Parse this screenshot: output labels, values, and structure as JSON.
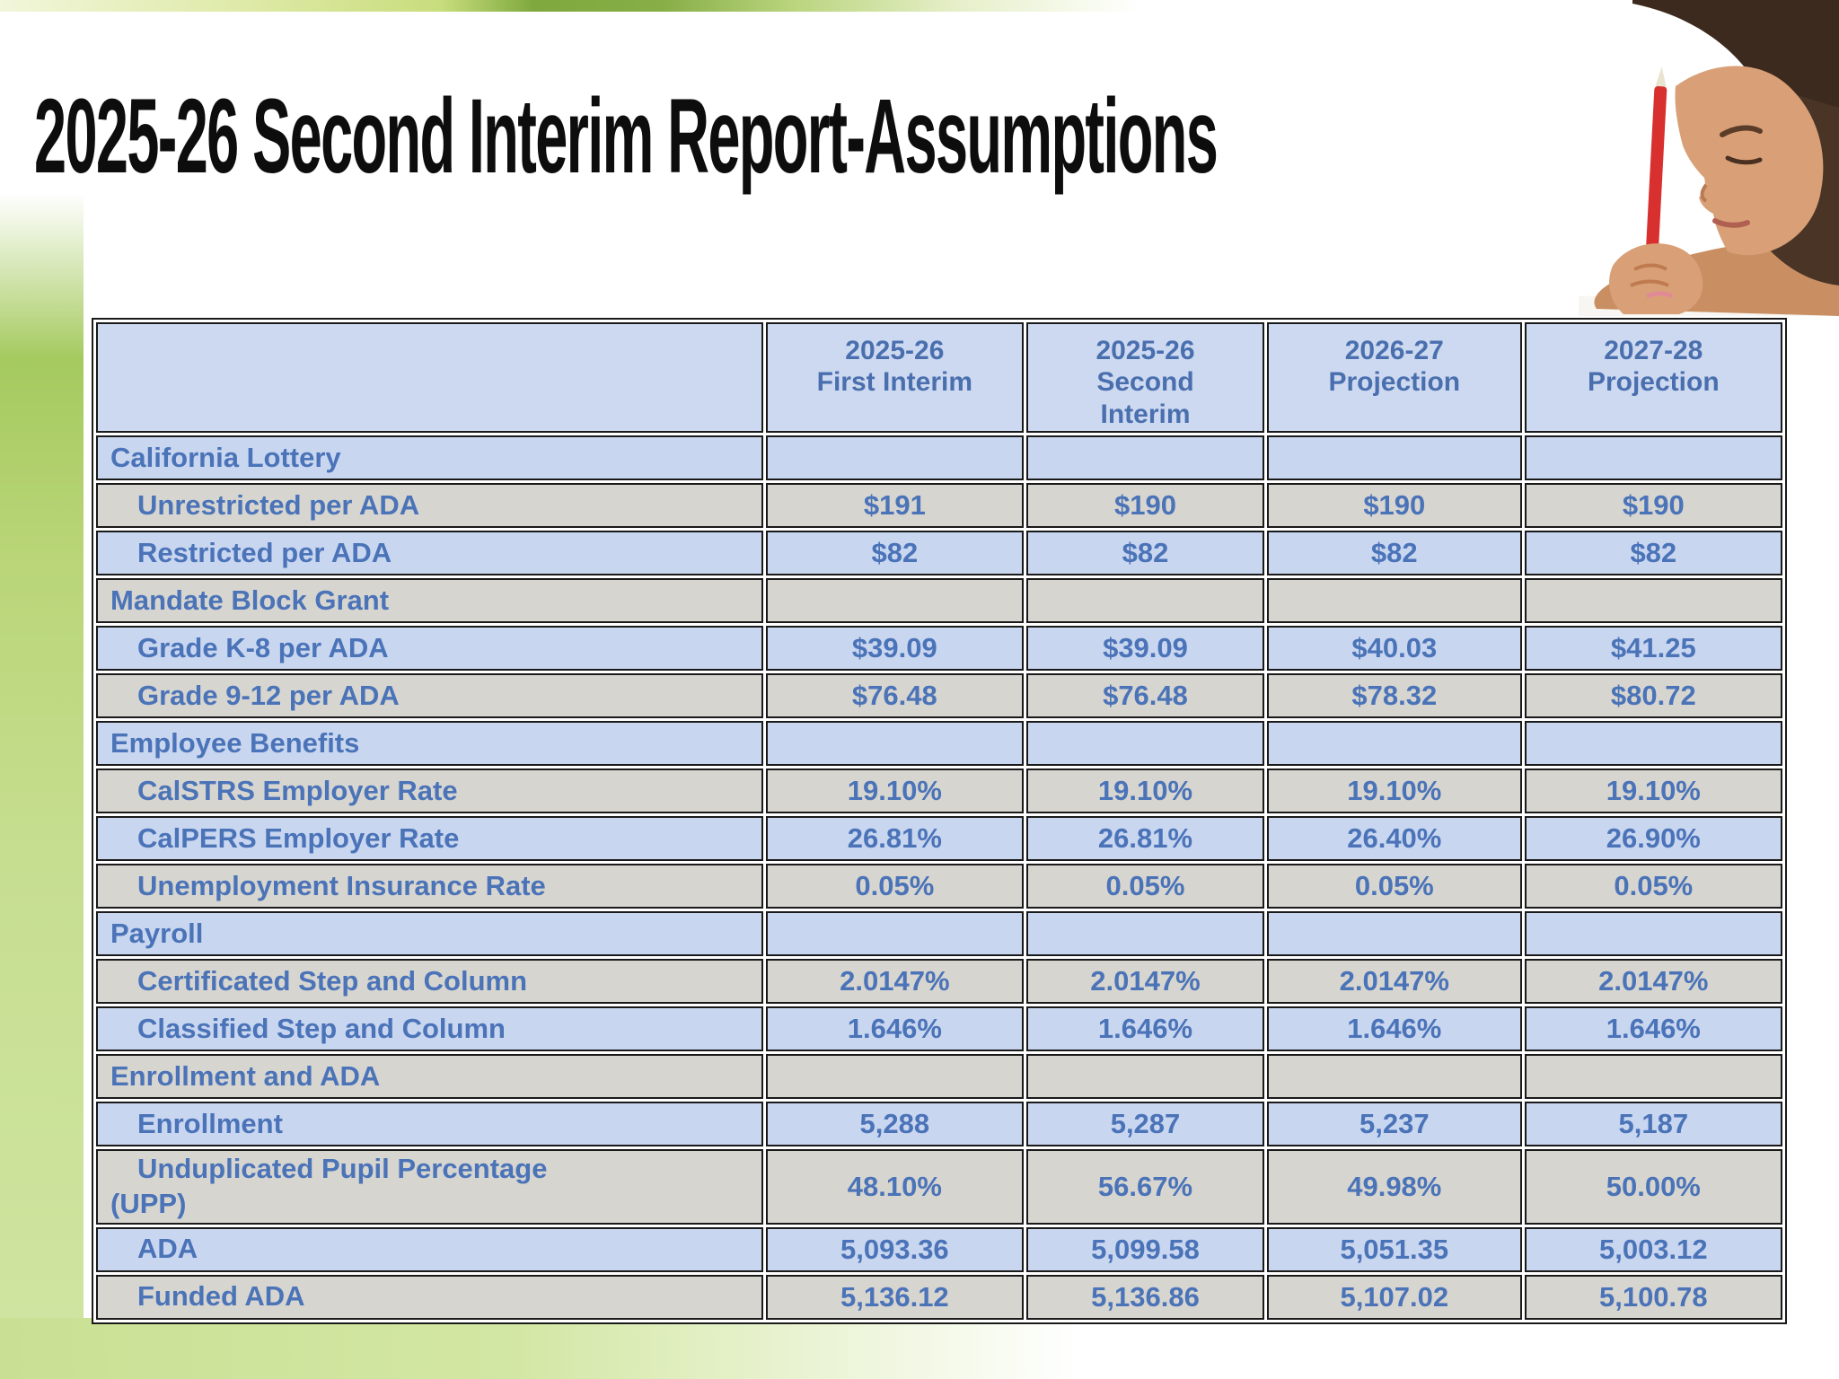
{
  "slide": {
    "title": "2025-26 Second Interim Report-Assumptions"
  },
  "photo": {
    "alt": "Child writing with a red pencil on a spiral notebook"
  },
  "colors": {
    "header_blue": "#cdd9f0",
    "row_blue": "#c9d6f0",
    "row_gray": "#d7d5d0",
    "text_blue": "#4a73b8",
    "accent_green": "#a5ca5f",
    "pencil_red": "#d8302e"
  },
  "table": {
    "columns": [
      "2025-26\nFirst Interim",
      "2025-26\nSecond\nInterim",
      "2026-27\nProjection",
      "2027-28\nProjection"
    ],
    "rows": [
      {
        "label": "California Lottery",
        "type": "section",
        "values": [
          "",
          "",
          "",
          ""
        ]
      },
      {
        "label": "Unrestricted per ADA",
        "type": "item",
        "values": [
          "$191",
          "$190",
          "$190",
          "$190"
        ]
      },
      {
        "label": "Restricted per ADA",
        "type": "item",
        "values": [
          "$82",
          "$82",
          "$82",
          "$82"
        ]
      },
      {
        "label": "Mandate Block Grant",
        "type": "section",
        "values": [
          "",
          "",
          "",
          ""
        ]
      },
      {
        "label": "Grade K-8 per ADA",
        "type": "item",
        "values": [
          "$39.09",
          "$39.09",
          "$40.03",
          "$41.25"
        ]
      },
      {
        "label": "Grade 9-12 per ADA",
        "type": "item",
        "values": [
          "$76.48",
          "$76.48",
          "$78.32",
          "$80.72"
        ]
      },
      {
        "label": "Employee Benefits",
        "type": "section",
        "values": [
          "",
          "",
          "",
          ""
        ]
      },
      {
        "label": "CalSTRS Employer Rate",
        "type": "item",
        "values": [
          "19.10%",
          "19.10%",
          "19.10%",
          "19.10%"
        ]
      },
      {
        "label": "CalPERS Employer Rate",
        "type": "item",
        "values": [
          "26.81%",
          "26.81%",
          "26.40%",
          "26.90%"
        ]
      },
      {
        "label": "Unemployment Insurance Rate",
        "type": "item",
        "values": [
          "0.05%",
          "0.05%",
          "0.05%",
          "0.05%"
        ]
      },
      {
        "label": "Payroll",
        "type": "section",
        "values": [
          "",
          "",
          "",
          ""
        ]
      },
      {
        "label": "Certificated Step and Column",
        "type": "item",
        "values": [
          "2.0147%",
          "2.0147%",
          "2.0147%",
          "2.0147%"
        ]
      },
      {
        "label": "Classified Step and Column",
        "type": "item",
        "values": [
          "1.646%",
          "1.646%",
          "1.646%",
          "1.646%"
        ]
      },
      {
        "label": "Enrollment and ADA",
        "type": "section",
        "values": [
          "",
          "",
          "",
          ""
        ]
      },
      {
        "label": "Enrollment",
        "type": "item",
        "values": [
          "5,288",
          "5,287",
          "5,237",
          "5,187"
        ]
      },
      {
        "label": "Unduplicated Pupil Percentage\n(UPP)",
        "type": "item",
        "values": [
          "48.10%",
          "56.67%",
          "49.98%",
          "50.00%"
        ]
      },
      {
        "label": "ADA",
        "type": "item",
        "values": [
          "5,093.36",
          "5,099.58",
          "5,051.35",
          "5,003.12"
        ]
      },
      {
        "label": "Funded ADA",
        "type": "item",
        "values": [
          "5,136.12",
          "5,136.86",
          "5,107.02",
          "5,100.78"
        ]
      }
    ]
  }
}
